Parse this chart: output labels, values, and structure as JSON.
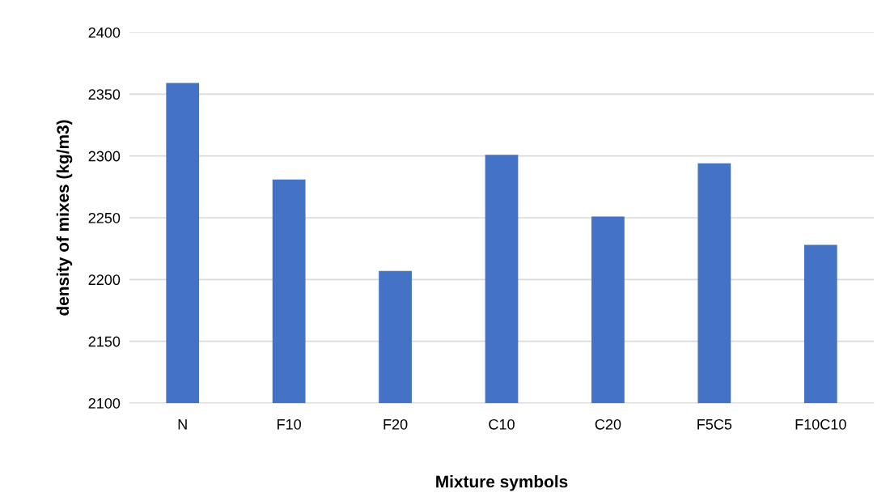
{
  "chart_data": {
    "type": "bar",
    "xlabel": "Mixture symbols",
    "ylabel": "density of mixes (kg/m3)",
    "categories": [
      "N",
      "F10",
      "F20",
      "C10",
      "C20",
      "F5C5",
      "F10C10"
    ],
    "values": [
      2359,
      2281,
      2207,
      2301,
      2251,
      2294,
      2228
    ],
    "color": "#4472c4",
    "ylim": [
      2100,
      2400
    ],
    "yticks": [
      2100,
      2150,
      2200,
      2250,
      2300,
      2350,
      2400
    ],
    "grid": "y"
  }
}
